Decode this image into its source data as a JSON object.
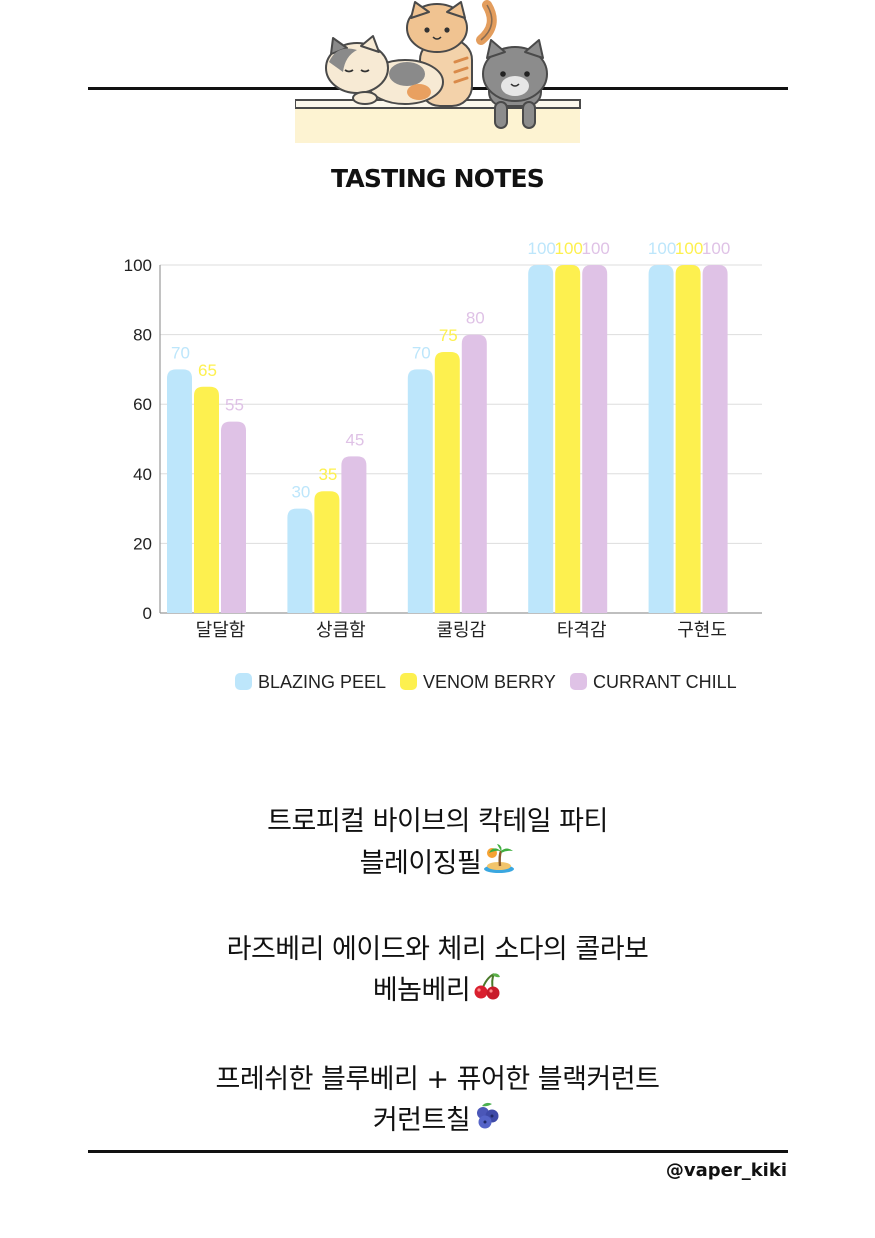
{
  "title": "TASTING NOTES",
  "chart_data": {
    "type": "bar",
    "categories": [
      "달달함",
      "상큼함",
      "쿨링감",
      "타격감",
      "구현도"
    ],
    "series": [
      {
        "name": "BLAZING PEEL",
        "color": "#bde6fb",
        "values": [
          70,
          30,
          70,
          100,
          100
        ]
      },
      {
        "name": "VENOM BERRY",
        "color": "#fdf04f",
        "values": [
          65,
          35,
          75,
          100,
          100
        ]
      },
      {
        "name": "CURRANT CHILL",
        "color": "#dfc2e6",
        "values": [
          55,
          45,
          80,
          100,
          100
        ]
      }
    ],
    "ylim": [
      0,
      100
    ],
    "yticks": [
      0,
      20,
      40,
      60,
      80,
      100
    ],
    "grid": true,
    "legend": "bottom",
    "data_labels": true
  },
  "notes": [
    {
      "desc": "트로피컬 바이브의 칵테일 파티",
      "name": "블레이징필",
      "emoji_icon": "desert-island-icon"
    },
    {
      "desc": "라즈베리 에이드와 체리 소다의 콜라보",
      "name": "베놈베리",
      "emoji_icon": "cherry-icon"
    },
    {
      "desc": "프레쉬한 블루베리 + 퓨어한 블랙커런트",
      "name": "커런트칠",
      "emoji_icon": "blueberries-icon"
    }
  ],
  "handle": "@vaper_kiki"
}
